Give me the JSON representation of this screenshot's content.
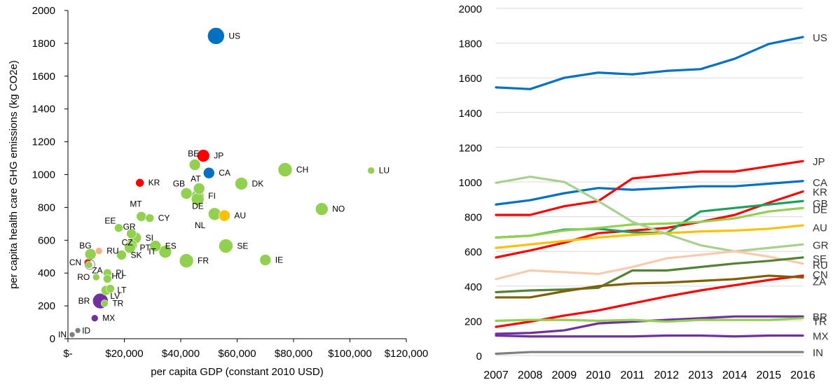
{
  "chart_data": [
    {
      "type": "scatter",
      "xlabel": "per capita GDP (constant 2010 USD)",
      "ylabel": "per capita health care GHG emissions (kg CO2e)",
      "xlim": [
        0,
        120000
      ],
      "ylim": [
        0,
        2000
      ],
      "x_ticks": [
        "$-",
        "$20,000",
        "$40,000",
        "$60,000",
        "$80,000",
        "$100,000",
        "$120,000"
      ],
      "y_ticks": [
        "0",
        "200",
        "400",
        "600",
        "800",
        "1000",
        "1200",
        "1400",
        "1600",
        "1800",
        "2000"
      ],
      "points": [
        {
          "label": "US",
          "x": 52500,
          "y": 1845,
          "size": 12,
          "color": "#0070c0"
        },
        {
          "label": "JP",
          "x": 48000,
          "y": 1115,
          "size": 9,
          "color": "#ff0000"
        },
        {
          "label": "BE",
          "x": 45000,
          "y": 1060,
          "size": 8,
          "color": "#92d050"
        },
        {
          "label": "CA",
          "x": 50000,
          "y": 1010,
          "size": 8,
          "color": "#0070c0"
        },
        {
          "label": "CH",
          "x": 77000,
          "y": 1030,
          "size": 10,
          "color": "#92d050"
        },
        {
          "label": "LU",
          "x": 107500,
          "y": 1025,
          "size": 5,
          "color": "#92d050"
        },
        {
          "label": "KR",
          "x": 25500,
          "y": 950,
          "size": 6,
          "color": "#ff0000"
        },
        {
          "label": "AT",
          "x": 46500,
          "y": 915,
          "size": 8,
          "color": "#92d050"
        },
        {
          "label": "DK",
          "x": 61500,
          "y": 945,
          "size": 9,
          "color": "#92d050"
        },
        {
          "label": "GB",
          "x": 42000,
          "y": 885,
          "size": 8,
          "color": "#92d050"
        },
        {
          "label": "FI",
          "x": 46000,
          "y": 870,
          "size": 9,
          "color": "#92d050"
        },
        {
          "label": "DE",
          "x": 46000,
          "y": 850,
          "size": 9,
          "color": "#92d050"
        },
        {
          "label": "NO",
          "x": 90000,
          "y": 790,
          "size": 9,
          "color": "#92d050"
        },
        {
          "label": "AU",
          "x": 55500,
          "y": 750,
          "size": 8,
          "color": "#ffc000"
        },
        {
          "label": "NL",
          "x": 52000,
          "y": 760,
          "size": 9,
          "color": "#92d050"
        },
        {
          "label": "MT",
          "x": 26000,
          "y": 745,
          "size": 7,
          "color": "#92d050"
        },
        {
          "label": "CY",
          "x": 29000,
          "y": 735,
          "size": 6,
          "color": "#92d050"
        },
        {
          "label": "EE",
          "x": 18000,
          "y": 675,
          "size": 6,
          "color": "#92d050"
        },
        {
          "label": "GR",
          "x": 22500,
          "y": 640,
          "size": 7,
          "color": "#92d050"
        },
        {
          "label": "SI",
          "x": 24000,
          "y": 615,
          "size": 8,
          "color": "#92d050"
        },
        {
          "label": "CZ",
          "x": 22500,
          "y": 570,
          "size": 8,
          "color": "#92d050"
        },
        {
          "label": "ES",
          "x": 31000,
          "y": 565,
          "size": 8,
          "color": "#92d050"
        },
        {
          "label": "PT",
          "x": 22000,
          "y": 555,
          "size": 8,
          "color": "#92d050"
        },
        {
          "label": "SE",
          "x": 56000,
          "y": 565,
          "size": 10,
          "color": "#92d050"
        },
        {
          "label": "IT",
          "x": 34500,
          "y": 530,
          "size": 9,
          "color": "#92d050"
        },
        {
          "label": "SK",
          "x": 19000,
          "y": 510,
          "size": 7,
          "color": "#92d050"
        },
        {
          "label": "FR",
          "x": 42000,
          "y": 475,
          "size": 10,
          "color": "#92d050"
        },
        {
          "label": "IE",
          "x": 70000,
          "y": 480,
          "size": 8,
          "color": "#92d050"
        },
        {
          "label": "BG",
          "x": 8000,
          "y": 515,
          "size": 8,
          "color": "#92d050"
        },
        {
          "label": "RU",
          "x": 11000,
          "y": 535,
          "size": 5,
          "color": "#f4b183"
        },
        {
          "label": "CN",
          "x": 7000,
          "y": 465,
          "size": 5,
          "color": "#ff0000"
        },
        {
          "label": "ZA",
          "x": 7500,
          "y": 450,
          "size": 5,
          "color": "#92d050"
        },
        {
          "label": "PL",
          "x": 14000,
          "y": 400,
          "size": 6,
          "color": "#92d050"
        },
        {
          "label": "HU",
          "x": 14000,
          "y": 365,
          "size": 6,
          "color": "#92d050"
        },
        {
          "label": "RO",
          "x": 10000,
          "y": 375,
          "size": 5,
          "color": "#92d050"
        },
        {
          "label": "LT",
          "x": 15000,
          "y": 305,
          "size": 6,
          "color": "#92d050"
        },
        {
          "label": "LV",
          "x": 13500,
          "y": 295,
          "size": 7,
          "color": "#92d050"
        },
        {
          "label": "BR",
          "x": 11500,
          "y": 230,
          "size": 11,
          "color": "#7030a0"
        },
        {
          "label": "TR",
          "x": 13000,
          "y": 215,
          "size": 5,
          "color": "#92d050"
        },
        {
          "label": "MX",
          "x": 9500,
          "y": 125,
          "size": 5,
          "color": "#7030a0"
        },
        {
          "label": "IN",
          "x": 1500,
          "y": 25,
          "size": 4,
          "color": "#7f7f7f"
        },
        {
          "label": "ID",
          "x": 3500,
          "y": 50,
          "size": 4,
          "color": "#7f7f7f"
        }
      ]
    },
    {
      "type": "line",
      "x": [
        "2007",
        "2008",
        "2009",
        "2010",
        "2011",
        "2012",
        "2013",
        "2014",
        "2015",
        "2016"
      ],
      "ylim": [
        0,
        2000
      ],
      "y_ticks": [
        "0",
        "200",
        "400",
        "600",
        "800",
        "1000",
        "1200",
        "1400",
        "1600",
        "1800",
        "2000"
      ],
      "series": [
        {
          "name": "US",
          "color": "#0070c0",
          "values": [
            1545,
            1535,
            1600,
            1630,
            1620,
            1640,
            1650,
            1710,
            1795,
            1835
          ],
          "label_y": 1835
        },
        {
          "name": "JP",
          "color": "#ff0000",
          "values": [
            565,
            605,
            650,
            705,
            720,
            735,
            770,
            810,
            880,
            945
          ],
          "label_y": 1120
        },
        {
          "name": "CA",
          "color": "#0070c0",
          "values": [
            870,
            895,
            935,
            965,
            955,
            965,
            975,
            975,
            990,
            1005
          ],
          "label_y": 1000
        },
        {
          "name": "KR",
          "color": "#ff0000",
          "values": [
            810,
            810,
            860,
            890,
            1020,
            1040,
            1060,
            1060,
            1090,
            1120
          ],
          "label_y": 945
        },
        {
          "name": "GB",
          "color": "#1aa15d",
          "values": [
            680,
            690,
            725,
            730,
            710,
            705,
            830,
            850,
            870,
            890
          ],
          "label_y": 880
        },
        {
          "name": "DE",
          "color": "#92d050",
          "values": [
            680,
            690,
            720,
            735,
            755,
            760,
            770,
            790,
            830,
            850
          ],
          "label_y": 845
        },
        {
          "name": "AU",
          "color": "#ffc000",
          "values": [
            620,
            640,
            660,
            680,
            695,
            705,
            715,
            720,
            730,
            750
          ],
          "label_y": 740
        },
        {
          "name": "GR",
          "color": "#a9d18e",
          "values": [
            995,
            1030,
            1000,
            890,
            770,
            700,
            635,
            600,
            620,
            640
          ],
          "label_y": 640
        },
        {
          "name": "SE",
          "color": "#ff0000",
          "values": [
            165,
            195,
            230,
            260,
            300,
            340,
            375,
            405,
            435,
            460
          ],
          "label_y": 560
        },
        {
          "name": "RU",
          "color": "#f8cbad",
          "values": [
            440,
            490,
            480,
            470,
            510,
            560,
            580,
            600,
            570,
            530
          ],
          "label_y": 525
        },
        {
          "name": "CN",
          "color": "#548235",
          "values": [
            365,
            375,
            380,
            390,
            490,
            490,
            510,
            530,
            545,
            565
          ],
          "label_y": 470
        },
        {
          "name": "ZA",
          "color": "#7f6000",
          "values": [
            335,
            335,
            370,
            400,
            415,
            420,
            430,
            440,
            460,
            450
          ],
          "label_y": 430
        },
        {
          "name": "BR",
          "color": "#7030a0",
          "values": [
            125,
            130,
            145,
            185,
            195,
            205,
            215,
            225,
            225,
            225
          ],
          "label_y": 225
        },
        {
          "name": "TR",
          "color": "#92d050",
          "values": [
            200,
            205,
            205,
            200,
            205,
            195,
            205,
            205,
            205,
            215
          ],
          "label_y": 200
        },
        {
          "name": "MX",
          "color": "#7030a0",
          "values": [
            115,
            110,
            110,
            110,
            110,
            115,
            115,
            110,
            115,
            115
          ],
          "label_y": 115
        },
        {
          "name": "IN",
          "color": "#7f7f7f",
          "values": [
            10,
            20,
            20,
            20,
            20,
            20,
            20,
            20,
            20,
            20
          ],
          "label_y": 20
        }
      ]
    }
  ]
}
